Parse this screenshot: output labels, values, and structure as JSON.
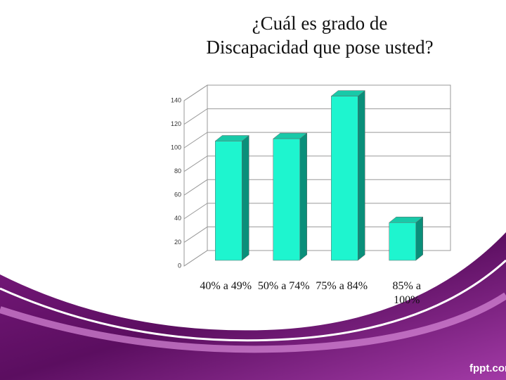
{
  "chart_data": {
    "type": "bar3d",
    "title": "¿Cuál es grado de Discapacidad que pose usted?",
    "categories": [
      "40% a 49%",
      "50% a 74%",
      "75% a 84%",
      "85% a 100%"
    ],
    "values": [
      101,
      103,
      139,
      32
    ],
    "color": "#1ef5cf",
    "ylim": [
      0,
      140
    ],
    "yticks": [
      0,
      20,
      40,
      60,
      80,
      100,
      120,
      140
    ],
    "grid": true
  },
  "watermark": "fppt.com"
}
